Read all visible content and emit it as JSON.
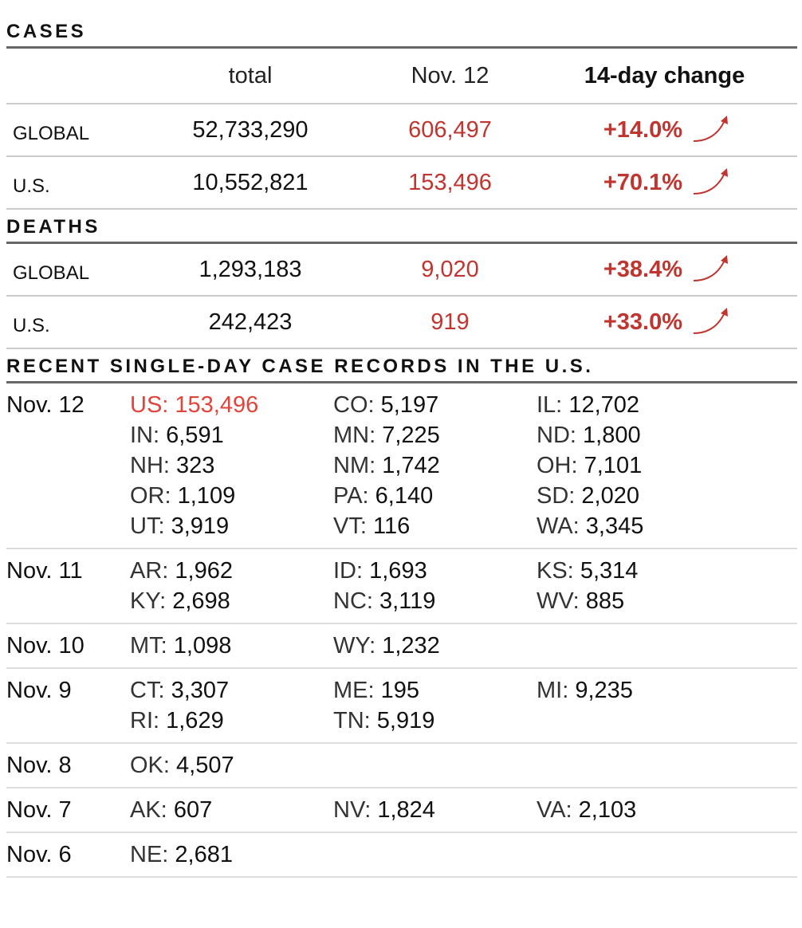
{
  "cases": {
    "title": "CASES",
    "headers": [
      "total",
      "Nov. 12",
      "14-day change"
    ],
    "rows": [
      {
        "label": "GLOBAL",
        "total": "52,733,290",
        "day": "606,497",
        "change": "+14.0%"
      },
      {
        "label": "U.S.",
        "total": "10,552,821",
        "day": "153,496",
        "change": "+70.1%"
      }
    ]
  },
  "deaths": {
    "title": "DEATHS",
    "rows": [
      {
        "label": "GLOBAL",
        "total": "1,293,183",
        "day": "9,020",
        "change": "+38.4%"
      },
      {
        "label": "U.S.",
        "total": "242,423",
        "day": "919",
        "change": "+33.0%"
      }
    ]
  },
  "records": {
    "title": "RECENT SINGLE-DAY CASE RECORDS IN THE U.S.",
    "days": [
      {
        "date": "Nov. 12",
        "entries": [
          {
            "state": "US:",
            "count": "153,496"
          },
          {
            "state": "CO:",
            "count": "5,197"
          },
          {
            "state": "IL:",
            "count": "12,702"
          },
          {
            "state": "IN:",
            "count": "6,591"
          },
          {
            "state": "MN:",
            "count": "7,225"
          },
          {
            "state": "ND:",
            "count": "1,800"
          },
          {
            "state": "NH:",
            "count": "323"
          },
          {
            "state": "NM:",
            "count": "1,742"
          },
          {
            "state": "OH:",
            "count": "7,101"
          },
          {
            "state": "OR:",
            "count": "1,109"
          },
          {
            "state": "PA:",
            "count": "6,140"
          },
          {
            "state": "SD:",
            "count": "2,020"
          },
          {
            "state": "UT:",
            "count": "3,919"
          },
          {
            "state": "VT:",
            "count": "116"
          },
          {
            "state": "WA:",
            "count": "3,345"
          }
        ]
      },
      {
        "date": "Nov. 11",
        "entries": [
          {
            "state": "AR:",
            "count": "1,962"
          },
          {
            "state": "ID:",
            "count": "1,693"
          },
          {
            "state": "KS:",
            "count": "5,314"
          },
          {
            "state": "KY:",
            "count": "2,698"
          },
          {
            "state": "NC:",
            "count": "3,119"
          },
          {
            "state": "WV:",
            "count": "885"
          }
        ]
      },
      {
        "date": "Nov. 10",
        "entries": [
          {
            "state": "MT:",
            "count": "1,098"
          },
          {
            "state": "WY:",
            "count": "1,232"
          }
        ]
      },
      {
        "date": "Nov. 9",
        "entries": [
          {
            "state": "CT:",
            "count": "3,307"
          },
          {
            "state": "ME:",
            "count": "195"
          },
          {
            "state": "MI:",
            "count": "9,235"
          },
          {
            "state": "RI:",
            "count": "1,629"
          },
          {
            "state": "TN:",
            "count": "5,919"
          }
        ]
      },
      {
        "date": "Nov. 8",
        "entries": [
          {
            "state": "OK:",
            "count": "4,507"
          }
        ]
      },
      {
        "date": "Nov. 7",
        "entries": [
          {
            "state": "AK:",
            "count": "607"
          },
          {
            "state": "NV:",
            "count": "1,824"
          },
          {
            "state": "VA:",
            "count": "2,103"
          }
        ]
      },
      {
        "date": "Nov. 6",
        "entries": [
          {
            "state": "NE:",
            "count": "2,681"
          }
        ]
      }
    ]
  }
}
